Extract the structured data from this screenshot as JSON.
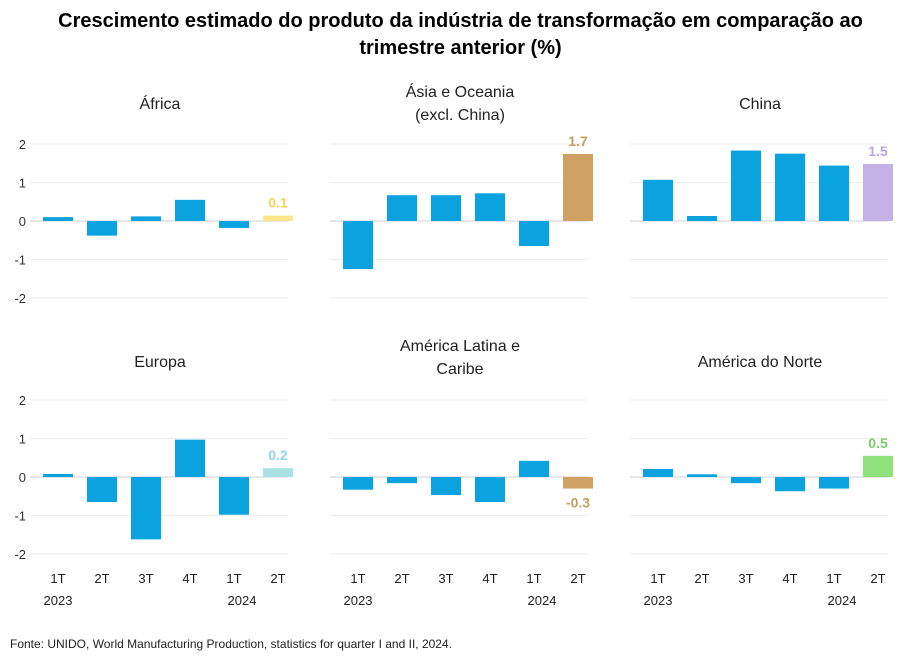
{
  "title_line1": "Crescimento estimado do produto da indústria de transformação em comparação ao",
  "title_line2": "trimestre anterior (%)",
  "source": "Fonte: UNIDO, World Manufacturing Production, statistics for quarter I and II, 2024.",
  "chart_data": [
    {
      "type": "bar",
      "title": [
        "África"
      ],
      "categories": [
        "1T",
        "2T",
        "3T",
        "4T",
        "1T",
        "2T"
      ],
      "year_labels": [
        "2023",
        "2024"
      ],
      "ylim": [
        -2,
        2
      ],
      "yticks": [
        2,
        1,
        0,
        -1,
        -2
      ],
      "show_yticks": true,
      "values": [
        0.1,
        -0.38,
        0.12,
        0.55,
        -0.18,
        0.14
      ],
      "bar_colors": [
        "#0ba3df",
        "#0ba3df",
        "#0ba3df",
        "#0ba3df",
        "#0ba3df",
        "#fde68a"
      ],
      "label_last": "0.1",
      "label_color": "#f7d25a"
    },
    {
      "type": "bar",
      "title": [
        "Ásia e Oceania",
        "(excl. China)"
      ],
      "categories": [
        "1T",
        "2T",
        "3T",
        "4T",
        "1T",
        "2T"
      ],
      "year_labels": [
        "2023",
        "2024"
      ],
      "ylim": [
        -2,
        2
      ],
      "yticks": [
        2,
        1,
        0,
        -1,
        -2
      ],
      "show_yticks": false,
      "values": [
        -1.25,
        0.67,
        0.67,
        0.72,
        -0.65,
        1.74
      ],
      "bar_colors": [
        "#0ba3df",
        "#0ba3df",
        "#0ba3df",
        "#0ba3df",
        "#0ba3df",
        "#cfa163"
      ],
      "label_last": "1.7",
      "label_color": "#c79c5e"
    },
    {
      "type": "bar",
      "title": [
        "China"
      ],
      "categories": [
        "1T",
        "2T",
        "3T",
        "4T",
        "1T",
        "2T"
      ],
      "year_labels": [
        "2023",
        "2024"
      ],
      "ylim": [
        -2,
        2
      ],
      "yticks": [
        2,
        1,
        0,
        -1,
        -2
      ],
      "show_yticks": false,
      "values": [
        1.07,
        0.13,
        1.83,
        1.75,
        1.44,
        1.48
      ],
      "bar_colors": [
        "#0ba3df",
        "#0ba3df",
        "#0ba3df",
        "#0ba3df",
        "#0ba3df",
        "#c3b1e5"
      ],
      "label_last": "1.5",
      "label_color": "#b9a6e1"
    },
    {
      "type": "bar",
      "title": [
        "Europa"
      ],
      "categories": [
        "1T",
        "2T",
        "3T",
        "4T",
        "1T",
        "2T"
      ],
      "year_labels": [
        "2023",
        "2024"
      ],
      "ylim": [
        -2,
        2
      ],
      "yticks": [
        2,
        1,
        0,
        -1,
        -2
      ],
      "show_yticks": true,
      "values": [
        0.08,
        -0.65,
        -1.62,
        0.97,
        -0.98,
        0.23
      ],
      "bar_colors": [
        "#0ba3df",
        "#0ba3df",
        "#0ba3df",
        "#0ba3df",
        "#0ba3df",
        "#a8e3e3"
      ],
      "label_last": "0.2",
      "label_color": "#8fd8dc"
    },
    {
      "type": "bar",
      "title": [
        "América Latina e",
        "Caribe"
      ],
      "categories": [
        "1T",
        "2T",
        "3T",
        "4T",
        "1T",
        "2T"
      ],
      "year_labels": [
        "2023",
        "2024"
      ],
      "ylim": [
        -2,
        2
      ],
      "yticks": [
        2,
        1,
        0,
        -1,
        -2
      ],
      "show_yticks": false,
      "values": [
        -0.33,
        -0.16,
        -0.47,
        -0.65,
        0.42,
        -0.3
      ],
      "bar_colors": [
        "#0ba3df",
        "#0ba3df",
        "#0ba3df",
        "#0ba3df",
        "#0ba3df",
        "#d0a264"
      ],
      "label_last": "-0.3",
      "label_color": "#c79c5e"
    },
    {
      "type": "bar",
      "title": [
        "América do Norte"
      ],
      "categories": [
        "1T",
        "2T",
        "3T",
        "4T",
        "1T",
        "2T"
      ],
      "year_labels": [
        "2023",
        "2024"
      ],
      "ylim": [
        -2,
        2
      ],
      "yticks": [
        2,
        1,
        0,
        -1,
        -2
      ],
      "show_yticks": false,
      "values": [
        0.21,
        0.07,
        -0.16,
        -0.37,
        -0.3,
        0.55
      ],
      "bar_colors": [
        "#0ba3df",
        "#0ba3df",
        "#0ba3df",
        "#0ba3df",
        "#0ba3df",
        "#8ee07a"
      ],
      "label_last": "0.5",
      "label_color": "#79cc66"
    }
  ]
}
